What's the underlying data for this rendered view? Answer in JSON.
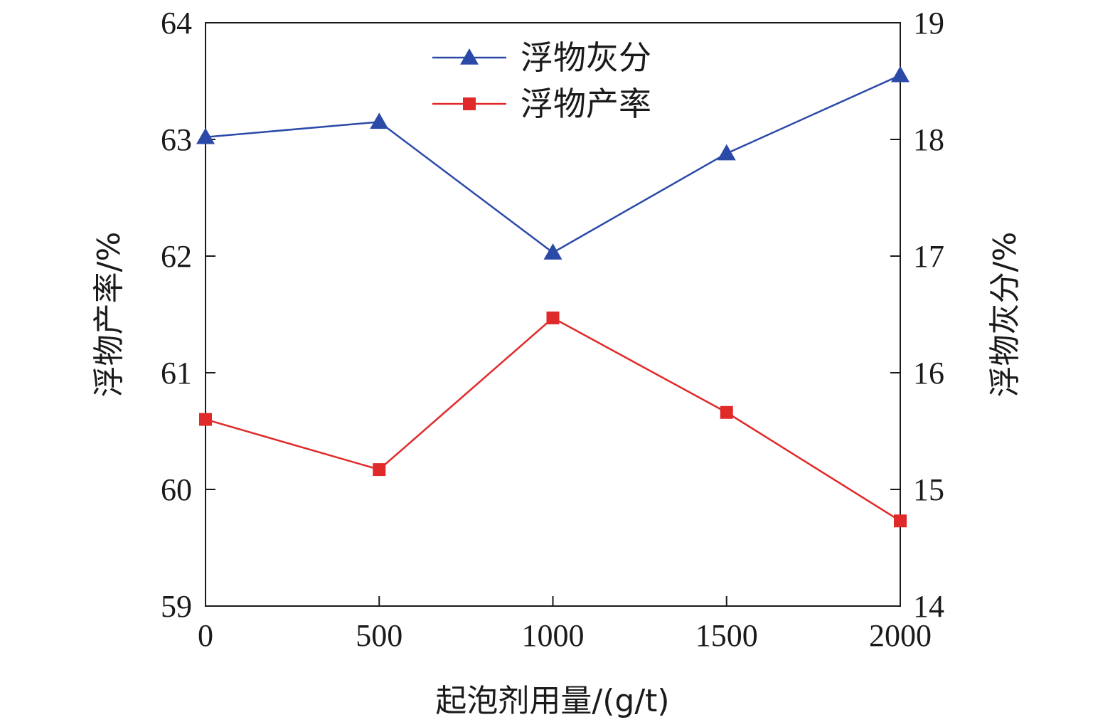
{
  "chart_data": {
    "type": "line",
    "x": [
      0,
      500,
      1000,
      1500,
      2000
    ],
    "xlabel": "起泡剂用量/(g/t)",
    "xlim": [
      0,
      2000
    ],
    "xticks": [
      0,
      500,
      1000,
      1500,
      2000
    ],
    "ylabel_left": "浮物产率/%",
    "ylim_left": [
      59,
      64
    ],
    "yticks_left": [
      59,
      60,
      61,
      62,
      63,
      64
    ],
    "ylabel_right": "浮物灰分/%",
    "ylim_right": [
      14,
      19
    ],
    "yticks_right": [
      14,
      15,
      16,
      17,
      18,
      19
    ],
    "grid": false,
    "legend_position": "top-center",
    "series": [
      {
        "name": "浮物灰分",
        "axis": "right",
        "marker": "triangle",
        "color": "#2b4aa8",
        "values": [
          18.02,
          18.15,
          17.03,
          17.88,
          18.55
        ]
      },
      {
        "name": "浮物产率",
        "axis": "left",
        "marker": "square",
        "color": "#e02a2a",
        "values": [
          60.6,
          60.17,
          61.47,
          60.66,
          59.73
        ]
      }
    ]
  }
}
